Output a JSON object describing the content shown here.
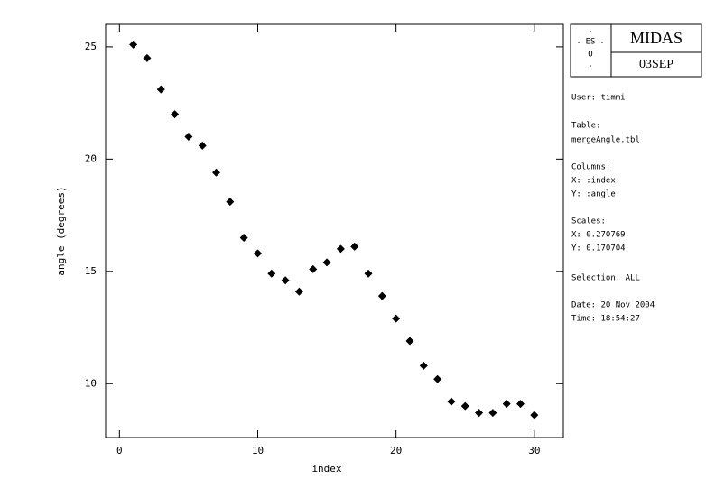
{
  "chart_data": {
    "type": "scatter",
    "x_label": "index",
    "y_label": "angle (degrees)",
    "x": [
      1,
      2,
      3,
      4,
      5,
      6,
      7,
      8,
      9,
      10,
      11,
      12,
      13,
      14,
      15,
      16,
      17,
      18,
      19,
      20,
      21,
      22,
      23,
      24,
      25,
      26,
      27,
      28,
      29,
      30
    ],
    "y": [
      25.1,
      24.5,
      23.1,
      22.0,
      21.0,
      20.6,
      19.4,
      18.1,
      16.5,
      15.8,
      14.9,
      14.6,
      14.1,
      15.1,
      15.4,
      16.0,
      16.1,
      14.9,
      13.9,
      12.9,
      11.9,
      10.8,
      10.2,
      9.2,
      9.0,
      8.7,
      8.7,
      9.1,
      9.1,
      8.6
    ],
    "color": "#000000",
    "xlim": [
      -1,
      32.1
    ],
    "ylim": [
      7.6,
      26
    ],
    "xticks": [
      0,
      10,
      20,
      30
    ],
    "yticks": [
      10,
      15,
      20,
      25
    ]
  },
  "info_panel": {
    "logo": [
      "ES",
      "O"
    ],
    "title": "MIDAS",
    "version": "03SEP",
    "lines": [
      "User: timmi",
      "Table:",
      "mergeAngle.tbl",
      "Columns:",
      "X: :index",
      "Y: :angle",
      "Scales:",
      "X: 0.270769",
      "Y: 0.170704",
      "Selection:  ALL",
      "Date: 20 Nov 2004",
      "Time: 18:54:27"
    ]
  }
}
